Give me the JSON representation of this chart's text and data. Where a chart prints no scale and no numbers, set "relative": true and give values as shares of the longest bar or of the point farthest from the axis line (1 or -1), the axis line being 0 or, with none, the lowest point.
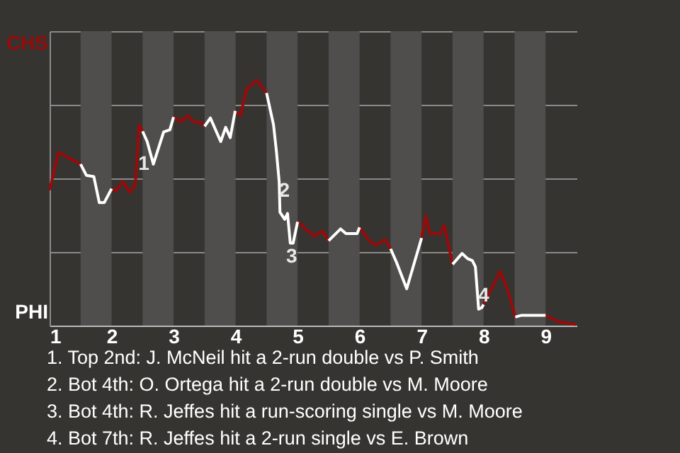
{
  "chart_data": {
    "type": "line",
    "relative": true,
    "xlim": [
      1,
      9.5
    ],
    "xticks": [
      1,
      2,
      3,
      4,
      5,
      6,
      7,
      8,
      9
    ],
    "grid": "y",
    "marker": "none",
    "line_style": "solid",
    "series": [
      {
        "color": "#9a0a0a",
        "x": [
          1.0,
          1.143,
          1.5,
          1.738,
          2.0,
          2.074,
          2.185,
          2.291,
          2.383,
          2.444,
          2.5,
          2.74,
          3.0,
          3.113,
          3.229,
          3.316,
          3.447,
          3.5,
          3.76,
          3.994,
          4.08,
          4.174,
          4.341,
          4.5,
          4.77,
          5.0,
          5.267,
          5.4,
          5.5,
          5.76,
          6.0,
          6.157,
          6.267,
          6.41,
          6.5,
          6.76,
          7.0,
          7.069,
          7.135,
          7.302,
          7.365,
          7.5,
          7.742,
          8.0,
          8.267,
          8.377,
          8.512,
          8.808,
          9.0,
          9.208,
          9.487
        ],
        "values": [
          0.552,
          0.706,
          0.658,
          null,
          0.558,
          0.549,
          0.587,
          0.543,
          0.573,
          0.818,
          0.792,
          null,
          0.85,
          0.831,
          0.856,
          0.831,
          0.827,
          0.812,
          null,
          0.875,
          0.856,
          0.962,
          1.0,
          0.948,
          null,
          0.423,
          0.365,
          0.385,
          0.346,
          null,
          0.4,
          0.346,
          0.327,
          0.351,
          0.313,
          null,
          0.357,
          0.447,
          0.375,
          0.375,
          0.408,
          0.25,
          null,
          0.086,
          0.221,
          0.154,
          0.035,
          null,
          0.042,
          0.016,
          0.004
        ]
      },
      {
        "color": "#ffffff",
        "x": [
          1.5,
          1.595,
          1.714,
          1.802,
          1.881,
          2.0,
          2.259,
          2.5,
          2.574,
          2.674,
          2.84,
          2.94,
          3.0,
          3.263,
          3.5,
          3.594,
          3.76,
          3.84,
          3.914,
          3.994,
          4.283,
          4.5,
          4.612,
          4.658,
          4.703,
          4.716,
          4.793,
          4.838,
          4.882,
          4.928,
          5.0,
          5.267,
          5.5,
          5.694,
          5.78,
          5.96,
          6.0,
          6.267,
          6.5,
          6.594,
          6.76,
          7.0,
          7.241,
          7.5,
          7.652,
          7.742,
          7.818,
          7.868,
          7.92,
          7.97,
          8.0,
          8.267,
          8.512,
          8.615,
          9.0
        ],
        "values": [
          0.658,
          0.612,
          0.607,
          0.501,
          0.501,
          0.558,
          null,
          0.792,
          0.75,
          0.658,
          0.789,
          0.798,
          0.85,
          null,
          0.812,
          0.846,
          0.75,
          0.808,
          0.766,
          0.875,
          null,
          0.948,
          0.818,
          0.712,
          0.587,
          0.462,
          0.433,
          0.457,
          0.336,
          0.336,
          0.423,
          null,
          0.346,
          0.394,
          0.375,
          0.375,
          0.4,
          null,
          0.313,
          0.259,
          0.15,
          0.357,
          null,
          0.25,
          0.294,
          0.273,
          0.265,
          0.24,
          0.067,
          0.073,
          0.086,
          null,
          0.035,
          0.042,
          0.042
        ]
      }
    ],
    "bands": [
      {
        "axis": "x",
        "from": 1.5,
        "to": 2,
        "color": "#4f4e4c"
      },
      {
        "axis": "x",
        "from": 2.5,
        "to": 3,
        "color": "#4f4e4c"
      },
      {
        "axis": "x",
        "from": 3.5,
        "to": 4,
        "color": "#4f4e4c"
      },
      {
        "axis": "x",
        "from": 4.5,
        "to": 5,
        "color": "#4f4e4c"
      },
      {
        "axis": "x",
        "from": 5.5,
        "to": 6,
        "color": "#4f4e4c"
      },
      {
        "axis": "x",
        "from": 6.5,
        "to": 7,
        "color": "#4f4e4c"
      },
      {
        "axis": "x",
        "from": 7.5,
        "to": 8,
        "color": "#4f4e4c"
      },
      {
        "axis": "x",
        "from": 8.5,
        "to": 9,
        "color": "#4f4e4c"
      }
    ],
    "annotations": [
      "CHS",
      "PHI",
      {
        "text": "1",
        "x": 2.52,
        "y": 0.658
      },
      {
        "text": "2",
        "x": 4.784,
        "y": 0.549
      },
      {
        "text": "3",
        "x": 4.905,
        "y": 0.28
      },
      {
        "text": "4",
        "x": 8.0,
        "y": 0.12
      },
      "1. Top 2nd: J. McNeil hit a 2-run double vs P. Smith",
      "2. Bot 4th: O. Ortega hit a 2-run double vs M. Moore",
      "3. Bot 4th: R. Jeffes hit a run-scoring single vs M. Moore",
      "4. Bot 7th: R. Jeffes hit a 2-run single vs E. Brown"
    ]
  }
}
